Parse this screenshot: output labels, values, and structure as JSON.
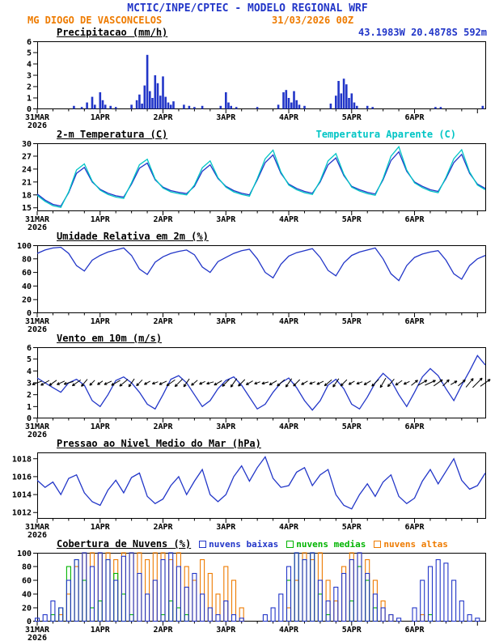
{
  "header": {
    "title": "MCTIC/INPE/CPTEC - MODELO REGIONAL WRF",
    "station": "MG DIOGO DE VASCONCELOS",
    "run_datetime": "31/03/2026 00Z",
    "location": "43.1983W 20.4878S 592m"
  },
  "colors": {
    "blue": "#2236c8",
    "orange": "#ee7b00",
    "cyan": "#00c5c5",
    "green": "#00b400",
    "black": "#000000"
  },
  "time_axis": {
    "hours_total": 171,
    "step_hours": 3,
    "day_tick_hours": [
      0,
      24,
      48,
      72,
      96,
      120,
      144
    ],
    "day_labels": [
      "31MAR",
      "1APR",
      "2APR",
      "3APR",
      "4APR",
      "5APR",
      "6APR"
    ],
    "year_label": "2026"
  },
  "chart_data": [
    {
      "id": "precip",
      "type": "bar",
      "title": "Precipitacao (mm/h)",
      "ylabel": "mm/h",
      "ylim": [
        0,
        6
      ],
      "yticks": [
        0,
        1,
        2,
        3,
        4,
        5,
        6
      ],
      "bar_color": "blue",
      "bars": [
        [
          14,
          0.3
        ],
        [
          17,
          0.2
        ],
        [
          19,
          0.6
        ],
        [
          21,
          1.1
        ],
        [
          22,
          0.4
        ],
        [
          24,
          1.5
        ],
        [
          25,
          0.8
        ],
        [
          26,
          0.4
        ],
        [
          28,
          0.3
        ],
        [
          30,
          0.2
        ],
        [
          36,
          0.4
        ],
        [
          38,
          0.8
        ],
        [
          39,
          1.3
        ],
        [
          40,
          0.5
        ],
        [
          41,
          2.1
        ],
        [
          42,
          4.8
        ],
        [
          43,
          1.6
        ],
        [
          44,
          1.0
        ],
        [
          45,
          3.0
        ],
        [
          46,
          2.3
        ],
        [
          47,
          1.2
        ],
        [
          48,
          2.9
        ],
        [
          49,
          1.1
        ],
        [
          50,
          0.6
        ],
        [
          51,
          0.4
        ],
        [
          52,
          0.7
        ],
        [
          56,
          0.4
        ],
        [
          58,
          0.3
        ],
        [
          60,
          0.2
        ],
        [
          63,
          0.3
        ],
        [
          70,
          0.3
        ],
        [
          72,
          1.5
        ],
        [
          73,
          0.6
        ],
        [
          74,
          0.3
        ],
        [
          76,
          0.2
        ],
        [
          84,
          0.2
        ],
        [
          92,
          0.4
        ],
        [
          94,
          1.5
        ],
        [
          95,
          1.7
        ],
        [
          96,
          1.0
        ],
        [
          97,
          0.6
        ],
        [
          98,
          1.6
        ],
        [
          99,
          0.8
        ],
        [
          100,
          0.4
        ],
        [
          102,
          0.3
        ],
        [
          112,
          0.5
        ],
        [
          114,
          1.2
        ],
        [
          115,
          2.5
        ],
        [
          116,
          1.4
        ],
        [
          117,
          2.7
        ],
        [
          118,
          2.2
        ],
        [
          119,
          1.0
        ],
        [
          120,
          1.4
        ],
        [
          121,
          0.6
        ],
        [
          122,
          0.3
        ],
        [
          126,
          0.3
        ],
        [
          128,
          0.2
        ],
        [
          152,
          0.2
        ],
        [
          154,
          0.2
        ],
        [
          170,
          0.3
        ]
      ]
    },
    {
      "id": "temp",
      "type": "line",
      "title": "2-m Temperatura (C)",
      "right_label": "Temperatura Aparente (C)",
      "ylim": [
        14.2,
        30
      ],
      "yticks": [
        15,
        18,
        21,
        24,
        27,
        30
      ],
      "series": [
        {
          "name": "2-m temperatura",
          "color": "blue",
          "values": [
            18.2,
            16.8,
            15.8,
            15.4,
            18.5,
            23.0,
            24.4,
            21.0,
            19.3,
            18.4,
            17.8,
            17.5,
            20.5,
            24.2,
            25.4,
            21.5,
            19.8,
            19.0,
            18.6,
            18.3,
            20.0,
            23.5,
            25.0,
            21.8,
            20.0,
            19.0,
            18.4,
            18.0,
            21.5,
            25.5,
            27.3,
            23.0,
            20.5,
            19.5,
            18.8,
            18.4,
            21.0,
            25.0,
            26.6,
            22.5,
            20.0,
            19.2,
            18.6,
            18.2,
            21.5,
            26.0,
            28.0,
            23.5,
            21.0,
            20.0,
            19.2,
            18.8,
            21.8,
            25.5,
            27.4,
            23.0,
            20.5,
            19.5
          ]
        },
        {
          "name": "temperatura aparente",
          "color": "cyan",
          "values": [
            17.9,
            16.5,
            15.5,
            15.1,
            18.7,
            23.8,
            25.2,
            21.2,
            19.1,
            18.1,
            17.5,
            17.2,
            20.8,
            25.0,
            26.3,
            21.7,
            19.6,
            18.7,
            18.3,
            18.0,
            20.3,
            24.3,
            25.9,
            22.0,
            19.8,
            18.7,
            18.1,
            17.7,
            21.8,
            26.4,
            28.4,
            23.3,
            20.3,
            19.2,
            18.5,
            18.1,
            21.3,
            25.9,
            27.6,
            22.8,
            19.8,
            18.9,
            18.3,
            17.9,
            21.8,
            27.0,
            29.2,
            23.8,
            20.8,
            19.7,
            18.9,
            18.5,
            22.1,
            26.4,
            28.5,
            23.3,
            20.3,
            19.2
          ]
        }
      ]
    },
    {
      "id": "rh",
      "type": "line",
      "title": "Umidade Relativa em 2m (%)",
      "ylim": [
        0,
        100
      ],
      "yticks": [
        0,
        20,
        40,
        60,
        80,
        100
      ],
      "series": [
        {
          "name": "umidade relativa 2m",
          "color": "blue",
          "values": [
            88,
            93,
            96,
            97,
            88,
            70,
            62,
            78,
            85,
            90,
            93,
            96,
            85,
            65,
            57,
            75,
            83,
            88,
            91,
            93,
            86,
            68,
            60,
            76,
            82,
            88,
            92,
            94,
            80,
            60,
            52,
            72,
            84,
            89,
            92,
            95,
            82,
            63,
            55,
            74,
            85,
            90,
            93,
            96,
            80,
            58,
            48,
            70,
            82,
            87,
            90,
            92,
            78,
            58,
            50,
            70,
            80,
            85
          ]
        }
      ]
    },
    {
      "id": "wind",
      "type": "line",
      "title": "Vento em 10m (m/s)",
      "ylim": [
        0,
        6
      ],
      "yticks": [
        0,
        1,
        2,
        3,
        4,
        5,
        6
      ],
      "series": [
        {
          "name": "velocidade do vento 10m",
          "color": "blue",
          "values": [
            3.4,
            3.0,
            2.6,
            2.2,
            3.0,
            3.3,
            2.8,
            1.5,
            1.0,
            2.0,
            3.2,
            3.5,
            3.0,
            2.2,
            1.2,
            0.8,
            2.0,
            3.3,
            3.6,
            3.0,
            2.0,
            1.0,
            1.5,
            2.5,
            3.2,
            3.5,
            2.8,
            1.8,
            0.8,
            1.2,
            2.2,
            3.0,
            3.4,
            2.6,
            1.5,
            0.7,
            1.5,
            2.8,
            3.3,
            2.5,
            1.2,
            0.8,
            1.8,
            3.0,
            3.8,
            3.2,
            2.0,
            1.0,
            2.2,
            3.5,
            4.2,
            3.6,
            2.5,
            1.5,
            2.8,
            4.0,
            5.3,
            4.5
          ]
        }
      ],
      "arrows": {
        "y": 3,
        "dirs_deg": [
          200,
          210,
          215,
          205,
          195,
          215,
          230,
          225,
          215,
          205,
          210,
          220,
          235,
          225,
          210,
          200,
          205,
          215,
          225,
          235,
          220,
          205,
          195,
          210,
          225,
          235,
          225,
          210,
          200,
          195,
          210,
          220,
          235,
          225,
          210,
          200,
          205,
          220,
          235,
          225,
          210,
          200,
          210,
          225,
          240,
          230,
          215,
          205,
          40,
          30,
          25,
          35,
          45,
          30,
          40,
          50,
          45,
          35
        ]
      }
    },
    {
      "id": "pressure",
      "type": "line",
      "title": "Pressao ao Nivel Medio do Mar (hPa)",
      "ylim": [
        1011.3,
        1018.7
      ],
      "yticks": [
        1012,
        1014,
        1016,
        1018
      ],
      "series": [
        {
          "name": "pressao nivel medio do mar",
          "color": "blue",
          "values": [
            1015.6,
            1014.8,
            1015.4,
            1014.0,
            1015.8,
            1016.2,
            1014.2,
            1013.2,
            1012.8,
            1014.5,
            1015.6,
            1014.2,
            1015.9,
            1016.4,
            1013.8,
            1013.0,
            1013.5,
            1015.0,
            1016.0,
            1014.0,
            1015.5,
            1016.8,
            1014.0,
            1013.2,
            1014.0,
            1016.0,
            1017.2,
            1015.5,
            1017.0,
            1018.2,
            1015.8,
            1014.8,
            1015.0,
            1016.5,
            1017.0,
            1015.0,
            1016.2,
            1016.8,
            1014.0,
            1012.8,
            1012.4,
            1014.0,
            1015.2,
            1013.8,
            1015.4,
            1016.2,
            1013.8,
            1013.0,
            1013.6,
            1015.5,
            1016.8,
            1015.2,
            1016.6,
            1018.0,
            1015.6,
            1014.6,
            1015.0,
            1016.4
          ]
        }
      ]
    },
    {
      "id": "clouds",
      "type": "outline-bar",
      "title": "Cobertura de Nuvens (%)",
      "ylim": [
        0,
        100
      ],
      "yticks": [
        0,
        20,
        40,
        60,
        80,
        100
      ],
      "legend": [
        {
          "label": "nuvens baixas",
          "color": "blue"
        },
        {
          "label": "nuvens medias",
          "color": "green"
        },
        {
          "label": "nuvens altas",
          "color": "orange"
        }
      ],
      "series": [
        {
          "name": "nuvens baixas",
          "color": "blue",
          "values": [
            5,
            10,
            30,
            20,
            60,
            90,
            100,
            80,
            100,
            90,
            60,
            95,
            100,
            70,
            40,
            60,
            90,
            100,
            80,
            50,
            70,
            40,
            20,
            10,
            30,
            10,
            5,
            0,
            0,
            10,
            20,
            40,
            80,
            100,
            90,
            100,
            60,
            30,
            50,
            70,
            90,
            100,
            70,
            40,
            20,
            10,
            5,
            0,
            20,
            60,
            80,
            90,
            85,
            60,
            30,
            10,
            5,
            0
          ]
        },
        {
          "name": "nuvens medias",
          "color": "green",
          "values": [
            0,
            0,
            10,
            20,
            80,
            90,
            60,
            20,
            30,
            90,
            70,
            40,
            10,
            0,
            0,
            0,
            10,
            30,
            20,
            10,
            0,
            0,
            0,
            0,
            0,
            0,
            0,
            0,
            0,
            0,
            0,
            0,
            60,
            100,
            90,
            100,
            40,
            10,
            0,
            0,
            30,
            80,
            60,
            20,
            0,
            0,
            0,
            0,
            0,
            0,
            10,
            0,
            0,
            0,
            0,
            0,
            0,
            0
          ]
        },
        {
          "name": "nuvens altas",
          "color": "orange",
          "values": [
            0,
            0,
            0,
            10,
            40,
            80,
            100,
            100,
            100,
            100,
            90,
            100,
            100,
            100,
            90,
            100,
            100,
            90,
            100,
            80,
            60,
            90,
            70,
            40,
            80,
            60,
            20,
            0,
            0,
            0,
            0,
            0,
            20,
            60,
            100,
            90,
            100,
            60,
            30,
            80,
            100,
            100,
            90,
            60,
            30,
            10,
            0,
            0,
            0,
            10,
            0,
            0,
            0,
            0,
            0,
            0,
            0,
            0
          ]
        }
      ]
    }
  ]
}
